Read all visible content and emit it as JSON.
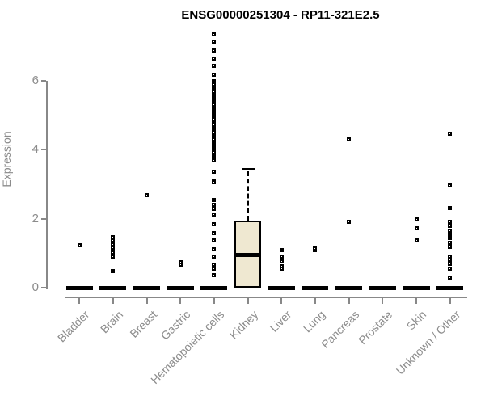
{
  "title": "ENSG00000251304 - RP11-321E2.5",
  "chart_data": {
    "type": "boxplot",
    "title": "ENSG00000251304 - RP11-321E2.5",
    "ylabel": "Expression",
    "xlabel": "",
    "ylim": [
      0,
      7.6
    ],
    "yticks": [
      0,
      2,
      4,
      6
    ],
    "grid": false,
    "legend": "none",
    "colors": {
      "box_fill": "#efe8d1",
      "box_border": "#000000",
      "axis": "#888888",
      "labels": "#8c8c8c",
      "title": "#000000"
    },
    "categories": [
      "Bladder",
      "Brain",
      "Breast",
      "Gastric",
      "Hematopoietic cells",
      "Kidney",
      "Liver",
      "Lung",
      "Pancreas",
      "Prostate",
      "Skin",
      "Unknown / Other"
    ],
    "groups": [
      {
        "name": "Bladder",
        "q1": 0,
        "median": 0,
        "q3": 0,
        "whisker_low": 0,
        "whisker_high": 0,
        "outliers": [
          1.24
        ]
      },
      {
        "name": "Brain",
        "q1": 0,
        "median": 0,
        "q3": 0,
        "whisker_low": 0,
        "whisker_high": 0,
        "outliers": [
          0.49,
          0.91,
          1.03,
          1.15,
          1.26,
          1.38,
          1.46
        ]
      },
      {
        "name": "Breast",
        "q1": 0,
        "median": 0,
        "q3": 0,
        "whisker_low": 0,
        "whisker_high": 0,
        "outliers": [
          2.67
        ]
      },
      {
        "name": "Gastric",
        "q1": 0,
        "median": 0,
        "q3": 0,
        "whisker_low": 0,
        "whisker_high": 0,
        "outliers": [
          0.66,
          0.74
        ]
      },
      {
        "name": "Hematopoietic cells",
        "q1": 0,
        "median": 0,
        "q3": 0,
        "whisker_low": 0,
        "whisker_high": 0,
        "outliers": [
          7.35,
          7.12,
          6.88,
          6.65,
          6.42,
          6.18,
          3.37,
          3.11,
          3.06,
          2.53,
          2.41,
          2.29,
          2.13,
          1.85,
          1.59,
          1.36,
          1.12,
          0.89,
          0.66,
          0.56,
          0.37
        ],
        "outlier_bands": [
          {
            "from": 5.99,
            "to": 3.7,
            "count": 44
          }
        ]
      },
      {
        "name": "Kidney",
        "q1": 0,
        "median": 0.95,
        "q3": 1.95,
        "whisker_low": 0,
        "whisker_high": 3.45,
        "outliers": []
      },
      {
        "name": "Liver",
        "q1": 0,
        "median": 0,
        "q3": 0,
        "whisker_low": 0,
        "whisker_high": 0,
        "outliers": [
          0.54,
          0.61,
          0.75,
          0.91,
          1.08
        ]
      },
      {
        "name": "Lung",
        "q1": 0,
        "median": 0,
        "q3": 0,
        "whisker_low": 0,
        "whisker_high": 0,
        "outliers": [
          1.1,
          1.13
        ]
      },
      {
        "name": "Pancreas",
        "q1": 0,
        "median": 0,
        "q3": 0,
        "whisker_low": 0,
        "whisker_high": 0,
        "outliers": [
          1.9,
          4.29
        ]
      },
      {
        "name": "Prostate",
        "q1": 0,
        "median": 0,
        "q3": 0,
        "whisker_low": 0,
        "whisker_high": 0,
        "outliers": []
      },
      {
        "name": "Skin",
        "q1": 0,
        "median": 0,
        "q3": 0,
        "whisker_low": 0,
        "whisker_high": 0,
        "outliers": [
          1.38,
          1.71,
          1.97
        ]
      },
      {
        "name": "Unknown / Other",
        "q1": 0,
        "median": 0,
        "q3": 0,
        "whisker_low": 0,
        "whisker_high": 0,
        "outliers": [
          4.47,
          2.97,
          2.3,
          1.9,
          1.78,
          1.66,
          1.55,
          1.43,
          1.31,
          1.19,
          0.91,
          0.8,
          0.68,
          0.56,
          0.3
        ]
      }
    ]
  }
}
